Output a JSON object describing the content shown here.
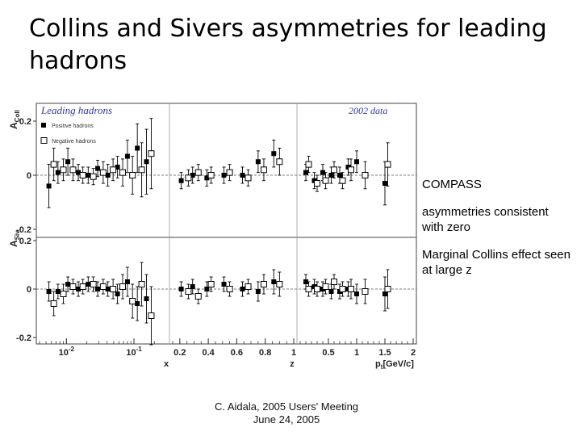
{
  "slide": {
    "title": "Collins and Sivers asymmetries for leading hadrons",
    "notes": [
      "COMPASS",
      "asymmetries consistent with zero",
      "Marginal Collins effect seen at large z"
    ],
    "footer": [
      "C. Aidala, 2005 Users' Meeting",
      "June 24, 2005"
    ]
  },
  "colors": {
    "positive": "#000000",
    "negative": "#000000",
    "plot_label": "#2a3aa8"
  },
  "chart_data": {
    "type": "scatter",
    "plot_label": "Leading hadrons",
    "data_label": "2002 data",
    "legend": {
      "placement": "top-left",
      "entries": [
        "Positive hadrons",
        "Negative hadrons"
      ]
    },
    "y_axes": [
      {
        "label": "A",
        "subscript": "Coll",
        "ticks": [
          {
            "v": 0.2,
            "t": "0.2"
          },
          {
            "v": 0,
            "t": "0"
          },
          {
            "v": -0.2,
            "t": "-0.2"
          }
        ]
      },
      {
        "label": "A",
        "subscript": "Siv",
        "ticks": [
          {
            "v": 0.2,
            "t": "0.2"
          },
          {
            "v": 0,
            "t": "0"
          },
          {
            "v": -0.2,
            "t": "-0.2"
          }
        ]
      }
    ],
    "x_axes": [
      {
        "var": "x",
        "label": "x",
        "scale": "log",
        "range": [
          0.004,
          0.3
        ],
        "ticks": [
          {
            "v": 0.01,
            "t": "10-2",
            "base": "10",
            "exp": "-2"
          },
          {
            "v": 0.1,
            "t": "10-1",
            "base": "10",
            "exp": "-1"
          }
        ]
      },
      {
        "var": "z",
        "label": "z",
        "scale": "linear",
        "range": [
          0.15,
          1.0
        ],
        "ticks": [
          {
            "v": 0.2,
            "t": "0.2"
          },
          {
            "v": 0.4,
            "t": "0.4"
          },
          {
            "v": 0.6,
            "t": "0.6"
          },
          {
            "v": 0.8,
            "t": "0.8"
          },
          {
            "v": 1.0,
            "t": "1"
          }
        ]
      },
      {
        "var": "pt",
        "label": "pt[GeV/c]",
        "label_main": "p",
        "label_sub": "t",
        "label_rest": "[GeV/c]",
        "scale": "linear",
        "range": [
          0.0,
          2.0
        ],
        "ticks": [
          {
            "v": 0.5,
            "t": "0.5"
          },
          {
            "v": 1,
            "t": "1"
          },
          {
            "v": 1.5,
            "t": "1.5"
          },
          {
            "v": 2,
            "t": "2"
          }
        ]
      }
    ],
    "panels": [
      {
        "asym": "Collins",
        "var": "x",
        "series": [
          {
            "name": "Positive hadrons",
            "points": [
              {
                "x": 0.0055,
                "y": -0.04,
                "err": 0.08
              },
              {
                "x": 0.0075,
                "y": 0.01,
                "err": 0.04
              },
              {
                "x": 0.0105,
                "y": 0.05,
                "err": 0.05
              },
              {
                "x": 0.015,
                "y": 0.01,
                "err": 0.03
              },
              {
                "x": 0.021,
                "y": 0.0,
                "err": 0.03
              },
              {
                "x": 0.029,
                "y": 0.025,
                "err": 0.03
              },
              {
                "x": 0.041,
                "y": 0.0,
                "err": 0.04
              },
              {
                "x": 0.057,
                "y": 0.03,
                "err": 0.04
              },
              {
                "x": 0.08,
                "y": 0.07,
                "err": 0.06
              },
              {
                "x": 0.112,
                "y": 0.1,
                "err": 0.09
              },
              {
                "x": 0.153,
                "y": 0.05,
                "err": 0.12
              }
            ]
          },
          {
            "name": "Negative hadrons",
            "points": [
              {
                "x": 0.0065,
                "y": 0.04,
                "err": 0.06
              },
              {
                "x": 0.009,
                "y": 0.02,
                "err": 0.04
              },
              {
                "x": 0.0125,
                "y": 0.02,
                "err": 0.04
              },
              {
                "x": 0.0175,
                "y": 0.0,
                "err": 0.03
              },
              {
                "x": 0.025,
                "y": -0.005,
                "err": 0.03
              },
              {
                "x": 0.035,
                "y": 0.01,
                "err": 0.04
              },
              {
                "x": 0.049,
                "y": 0.02,
                "err": 0.04
              },
              {
                "x": 0.068,
                "y": 0.01,
                "err": 0.05
              },
              {
                "x": 0.095,
                "y": 0.0,
                "err": 0.07
              },
              {
                "x": 0.13,
                "y": 0.02,
                "err": 0.1
              },
              {
                "x": 0.18,
                "y": 0.08,
                "err": 0.13
              }
            ]
          }
        ]
      },
      {
        "asym": "Collins",
        "var": "z",
        "series": [
          {
            "name": "Positive hadrons",
            "points": [
              {
                "x": 0.21,
                "y": -0.02,
                "err": 0.03
              },
              {
                "x": 0.29,
                "y": 0.0,
                "err": 0.03
              },
              {
                "x": 0.39,
                "y": -0.01,
                "err": 0.03
              },
              {
                "x": 0.51,
                "y": 0.0,
                "err": 0.03
              },
              {
                "x": 0.64,
                "y": 0.0,
                "err": 0.03
              },
              {
                "x": 0.75,
                "y": 0.05,
                "err": 0.04
              },
              {
                "x": 0.86,
                "y": 0.08,
                "err": 0.05
              }
            ]
          },
          {
            "name": "Negative hadrons",
            "points": [
              {
                "x": 0.26,
                "y": -0.01,
                "err": 0.03
              },
              {
                "x": 0.33,
                "y": 0.01,
                "err": 0.03
              },
              {
                "x": 0.42,
                "y": 0.0,
                "err": 0.03
              },
              {
                "x": 0.55,
                "y": 0.01,
                "err": 0.03
              },
              {
                "x": 0.68,
                "y": -0.01,
                "err": 0.03
              },
              {
                "x": 0.79,
                "y": 0.02,
                "err": 0.04
              },
              {
                "x": 0.9,
                "y": 0.05,
                "err": 0.05
              }
            ]
          }
        ]
      },
      {
        "asym": "Collins",
        "var": "pt",
        "series": [
          {
            "name": "Positive hadrons",
            "points": [
              {
                "x": 0.1,
                "y": 0.01,
                "err": 0.03
              },
              {
                "x": 0.25,
                "y": -0.02,
                "err": 0.03
              },
              {
                "x": 0.4,
                "y": 0.01,
                "err": 0.03
              },
              {
                "x": 0.55,
                "y": 0.0,
                "err": 0.03
              },
              {
                "x": 0.7,
                "y": 0.0,
                "err": 0.03
              },
              {
                "x": 0.85,
                "y": 0.03,
                "err": 0.03
              },
              {
                "x": 1.0,
                "y": 0.05,
                "err": 0.04
              },
              {
                "x": 1.5,
                "y": -0.03,
                "err": 0.08
              }
            ]
          },
          {
            "name": "Negative hadrons",
            "points": [
              {
                "x": 0.15,
                "y": 0.04,
                "err": 0.03
              },
              {
                "x": 0.3,
                "y": -0.03,
                "err": 0.03
              },
              {
                "x": 0.45,
                "y": -0.02,
                "err": 0.03
              },
              {
                "x": 0.6,
                "y": 0.02,
                "err": 0.03
              },
              {
                "x": 0.75,
                "y": -0.02,
                "err": 0.03
              },
              {
                "x": 0.9,
                "y": 0.02,
                "err": 0.04
              },
              {
                "x": 1.15,
                "y": 0.0,
                "err": 0.05
              },
              {
                "x": 1.55,
                "y": 0.04,
                "err": 0.08
              }
            ]
          }
        ]
      },
      {
        "asym": "Sivers",
        "var": "x",
        "series": [
          {
            "name": "Positive hadrons",
            "points": [
              {
                "x": 0.0055,
                "y": -0.01,
                "err": 0.04
              },
              {
                "x": 0.0075,
                "y": -0.01,
                "err": 0.03
              },
              {
                "x": 0.0105,
                "y": 0.02,
                "err": 0.03
              },
              {
                "x": 0.015,
                "y": 0.0,
                "err": 0.03
              },
              {
                "x": 0.021,
                "y": 0.02,
                "err": 0.03
              },
              {
                "x": 0.029,
                "y": 0.0,
                "err": 0.03
              },
              {
                "x": 0.041,
                "y": 0.0,
                "err": 0.03
              },
              {
                "x": 0.057,
                "y": -0.02,
                "err": 0.04
              },
              {
                "x": 0.08,
                "y": 0.03,
                "err": 0.06
              },
              {
                "x": 0.112,
                "y": -0.06,
                "err": 0.07
              },
              {
                "x": 0.153,
                "y": -0.04,
                "err": 0.1
              }
            ]
          },
          {
            "name": "Negative hadrons",
            "points": [
              {
                "x": 0.0065,
                "y": -0.06,
                "err": 0.05
              },
              {
                "x": 0.009,
                "y": -0.02,
                "err": 0.04
              },
              {
                "x": 0.0125,
                "y": 0.01,
                "err": 0.03
              },
              {
                "x": 0.0175,
                "y": 0.01,
                "err": 0.03
              },
              {
                "x": 0.025,
                "y": 0.02,
                "err": 0.03
              },
              {
                "x": 0.035,
                "y": 0.01,
                "err": 0.03
              },
              {
                "x": 0.049,
                "y": 0.0,
                "err": 0.04
              },
              {
                "x": 0.068,
                "y": 0.01,
                "err": 0.05
              },
              {
                "x": 0.095,
                "y": -0.05,
                "err": 0.07
              },
              {
                "x": 0.13,
                "y": 0.02,
                "err": 0.09
              },
              {
                "x": 0.18,
                "y": -0.11,
                "err": 0.12
              }
            ]
          }
        ]
      },
      {
        "asym": "Sivers",
        "var": "z",
        "series": [
          {
            "name": "Positive hadrons",
            "points": [
              {
                "x": 0.21,
                "y": 0.0,
                "err": 0.03
              },
              {
                "x": 0.29,
                "y": 0.01,
                "err": 0.03
              },
              {
                "x": 0.39,
                "y": 0.0,
                "err": 0.03
              },
              {
                "x": 0.51,
                "y": 0.02,
                "err": 0.03
              },
              {
                "x": 0.64,
                "y": 0.0,
                "err": 0.03
              },
              {
                "x": 0.75,
                "y": -0.01,
                "err": 0.04
              },
              {
                "x": 0.86,
                "y": 0.03,
                "err": 0.05
              }
            ]
          },
          {
            "name": "Negative hadrons",
            "points": [
              {
                "x": 0.26,
                "y": -0.01,
                "err": 0.03
              },
              {
                "x": 0.33,
                "y": -0.03,
                "err": 0.03
              },
              {
                "x": 0.42,
                "y": 0.02,
                "err": 0.03
              },
              {
                "x": 0.55,
                "y": 0.0,
                "err": 0.03
              },
              {
                "x": 0.68,
                "y": 0.01,
                "err": 0.03
              },
              {
                "x": 0.79,
                "y": 0.02,
                "err": 0.04
              },
              {
                "x": 0.9,
                "y": 0.02,
                "err": 0.05
              }
            ]
          }
        ]
      },
      {
        "asym": "Sivers",
        "var": "pt",
        "series": [
          {
            "name": "Positive hadrons",
            "points": [
              {
                "x": 0.1,
                "y": 0.03,
                "err": 0.03
              },
              {
                "x": 0.25,
                "y": 0.01,
                "err": 0.03
              },
              {
                "x": 0.4,
                "y": 0.0,
                "err": 0.03
              },
              {
                "x": 0.55,
                "y": -0.01,
                "err": 0.03
              },
              {
                "x": 0.7,
                "y": -0.01,
                "err": 0.03
              },
              {
                "x": 0.85,
                "y": 0.0,
                "err": 0.03
              },
              {
                "x": 1.0,
                "y": -0.02,
                "err": 0.04
              },
              {
                "x": 1.5,
                "y": -0.02,
                "err": 0.07
              }
            ]
          },
          {
            "name": "Negative hadrons",
            "points": [
              {
                "x": 0.15,
                "y": 0.0,
                "err": 0.03
              },
              {
                "x": 0.3,
                "y": 0.0,
                "err": 0.03
              },
              {
                "x": 0.45,
                "y": 0.01,
                "err": 0.03
              },
              {
                "x": 0.6,
                "y": 0.03,
                "err": 0.03
              },
              {
                "x": 0.75,
                "y": 0.0,
                "err": 0.03
              },
              {
                "x": 0.9,
                "y": 0.0,
                "err": 0.04
              },
              {
                "x": 1.15,
                "y": -0.01,
                "err": 0.05
              },
              {
                "x": 1.55,
                "y": 0.0,
                "err": 0.08
              }
            ]
          }
        ]
      }
    ]
  }
}
